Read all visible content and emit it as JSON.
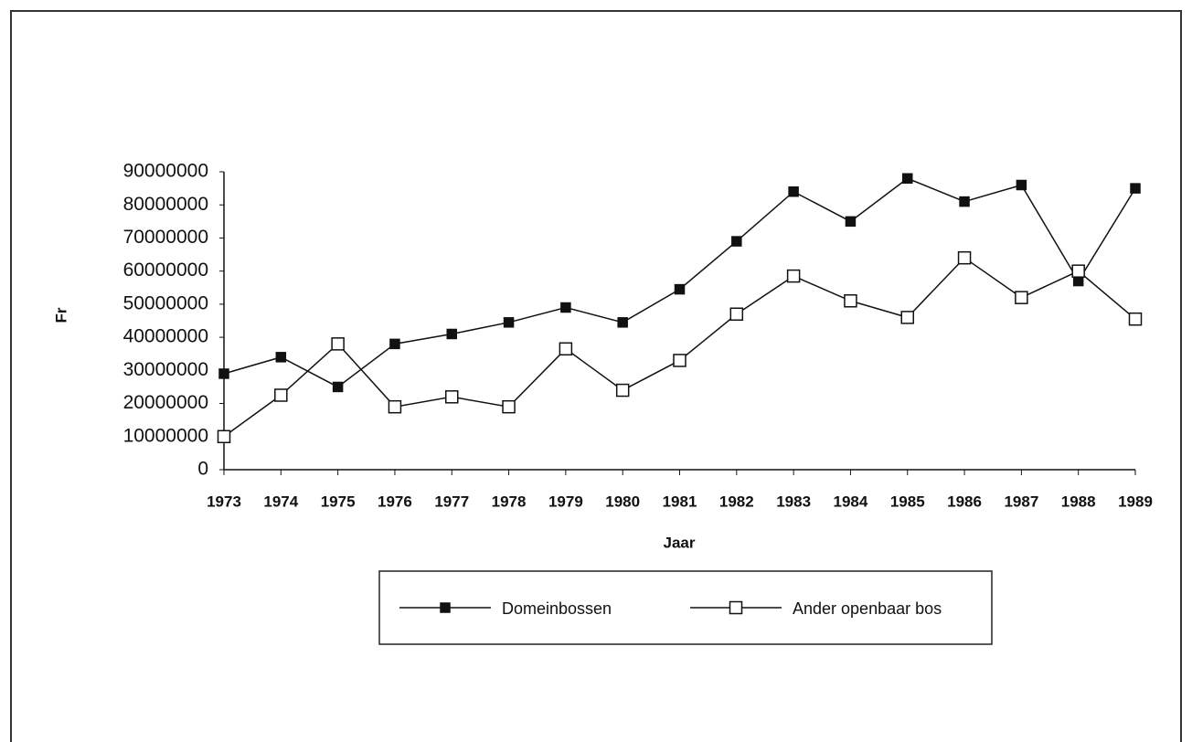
{
  "chart_data": {
    "type": "line",
    "x_label": "Jaar",
    "y_label": "Fr",
    "categories": [
      "1973",
      "1974",
      "1975",
      "1976",
      "1977",
      "1978",
      "1979",
      "1980",
      "1981",
      "1982",
      "1983",
      "1984",
      "1985",
      "1986",
      "1987",
      "1988",
      "1989"
    ],
    "series": [
      {
        "name": "Domeinbossen",
        "color": "#111",
        "marker_fill": "#111",
        "values": [
          29000000,
          34000000,
          25000000,
          38000000,
          41000000,
          44500000,
          49000000,
          44500000,
          54500000,
          69000000,
          84000000,
          75000000,
          88000000,
          81000000,
          86000000,
          57000000,
          85000000
        ]
      },
      {
        "name": "Ander openbaar bos",
        "color": "#111",
        "marker_fill": "#fff",
        "values": [
          10000000,
          22500000,
          38000000,
          19000000,
          22000000,
          19000000,
          36500000,
          24000000,
          33000000,
          47000000,
          58500000,
          51000000,
          46000000,
          64000000,
          52000000,
          60000000,
          45500000
        ]
      }
    ],
    "ylim": [
      0,
      90000000
    ],
    "yticks": [
      0,
      10000000,
      20000000,
      30000000,
      40000000,
      50000000,
      60000000,
      70000000,
      80000000,
      90000000
    ],
    "grid": false
  }
}
